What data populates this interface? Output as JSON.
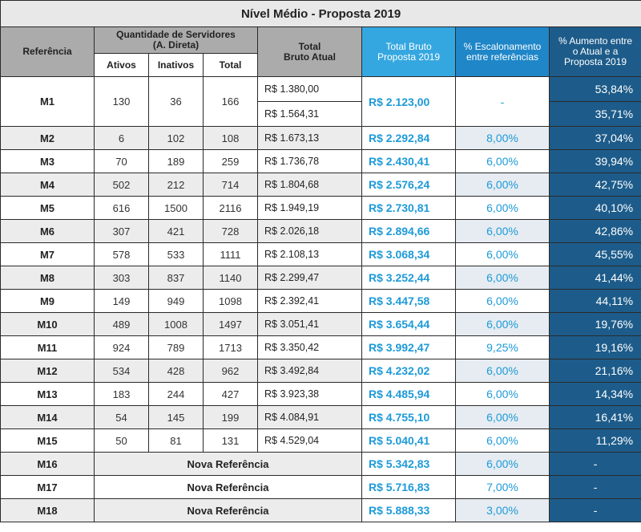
{
  "title": "Nível Médio - Proposta 2019",
  "headers": {
    "referencia": "Referência",
    "quantidade_line1": "Quantidade de Servidores",
    "quantidade_line2": "(A. Direta)",
    "ativos": "Ativos",
    "inativos": "Inativos",
    "total": "Total",
    "total_bruto_atual_line1": "Total",
    "total_bruto_atual_line2": "Bruto Atual",
    "total_bruto_proposta_line1": "Total Bruto",
    "total_bruto_proposta_line2": "Proposta 2019",
    "escalonamento_line1": "% Escalonamento",
    "escalonamento_line2": "entre referências",
    "aumento_line1": "% Aumento entre",
    "aumento_line2": "o Atual e a",
    "aumento_line3": "Proposta 2019"
  },
  "m1": {
    "ref": "M1",
    "ativos": "130",
    "inativos": "36",
    "total": "166",
    "atual_1": "R$ 1.380,00",
    "atual_2": "R$ 1.564,31",
    "proposta": "R$ 2.123,00",
    "esc": "-",
    "aumento_1": "53,84%",
    "aumento_2": "35,71%"
  },
  "rows": [
    {
      "ref": "M2",
      "ativos": "6",
      "inativos": "102",
      "total": "108",
      "atual": "R$ 1.673,13",
      "proposta": "R$ 2.292,84",
      "esc": "8,00%",
      "aumento": "37,04%"
    },
    {
      "ref": "M3",
      "ativos": "70",
      "inativos": "189",
      "total": "259",
      "atual": "R$ 1.736,78",
      "proposta": "R$ 2.430,41",
      "esc": "6,00%",
      "aumento": "39,94%"
    },
    {
      "ref": "M4",
      "ativos": "502",
      "inativos": "212",
      "total": "714",
      "atual": "R$ 1.804,68",
      "proposta": "R$ 2.576,24",
      "esc": "6,00%",
      "aumento": "42,75%"
    },
    {
      "ref": "M5",
      "ativos": "616",
      "inativos": "1500",
      "total": "2116",
      "atual": "R$ 1.949,19",
      "proposta": "R$ 2.730,81",
      "esc": "6,00%",
      "aumento": "40,10%"
    },
    {
      "ref": "M6",
      "ativos": "307",
      "inativos": "421",
      "total": "728",
      "atual": "R$ 2.026,18",
      "proposta": "R$ 2.894,66",
      "esc": "6,00%",
      "aumento": "42,86%"
    },
    {
      "ref": "M7",
      "ativos": "578",
      "inativos": "533",
      "total": "1111",
      "atual": "R$ 2.108,13",
      "proposta": "R$ 3.068,34",
      "esc": "6,00%",
      "aumento": "45,55%"
    },
    {
      "ref": "M8",
      "ativos": "303",
      "inativos": "837",
      "total": "1140",
      "atual": "R$ 2.299,47",
      "proposta": "R$ 3.252,44",
      "esc": "6,00%",
      "aumento": "41,44%"
    },
    {
      "ref": "M9",
      "ativos": "149",
      "inativos": "949",
      "total": "1098",
      "atual": "R$ 2.392,41",
      "proposta": "R$ 3.447,58",
      "esc": "6,00%",
      "aumento": "44,11%"
    },
    {
      "ref": "M10",
      "ativos": "489",
      "inativos": "1008",
      "total": "1497",
      "atual": "R$ 3.051,41",
      "proposta": "R$ 3.654,44",
      "esc": "6,00%",
      "aumento": "19,76%"
    },
    {
      "ref": "M11",
      "ativos": "924",
      "inativos": "789",
      "total": "1713",
      "atual": "R$ 3.350,42",
      "proposta": "R$ 3.992,47",
      "esc": "9,25%",
      "aumento": "19,16%"
    },
    {
      "ref": "M12",
      "ativos": "534",
      "inativos": "428",
      "total": "962",
      "atual": "R$ 3.492,84",
      "proposta": "R$ 4.232,02",
      "esc": "6,00%",
      "aumento": "21,16%"
    },
    {
      "ref": "M13",
      "ativos": "183",
      "inativos": "244",
      "total": "427",
      "atual": "R$ 3.923,38",
      "proposta": "R$ 4.485,94",
      "esc": "6,00%",
      "aumento": "14,34%"
    },
    {
      "ref": "M14",
      "ativos": "54",
      "inativos": "145",
      "total": "199",
      "atual": "R$ 4.084,91",
      "proposta": "R$ 4.755,10",
      "esc": "6,00%",
      "aumento": "16,41%"
    },
    {
      "ref": "M15",
      "ativos": "50",
      "inativos": "81",
      "total": "131",
      "atual": "R$ 4.529,04",
      "proposta": "R$ 5.040,41",
      "esc": "6,00%",
      "aumento": "11,29%"
    }
  ],
  "nova_rows": [
    {
      "ref": "M16",
      "label": "Nova Referência",
      "proposta": "R$ 5.342,83",
      "esc": "6,00%",
      "aumento": "-"
    },
    {
      "ref": "M17",
      "label": "Nova Referência",
      "proposta": "R$ 5.716,83",
      "esc": "7,00%",
      "aumento": "-"
    },
    {
      "ref": "M18",
      "label": "Nova Referência",
      "proposta": "R$ 5.888,33",
      "esc": "3,00%",
      "aumento": "-"
    }
  ],
  "colors": {
    "header_gray": "#ababab",
    "proposta_header": "#35a7e0",
    "escalonamento_header": "#1f86c8",
    "aumento_dark": "#1d5c8a",
    "accent_text": "#1d9ad8"
  }
}
